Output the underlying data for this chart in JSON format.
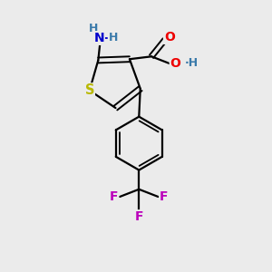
{
  "background_color": "#ebebeb",
  "atom_colors": {
    "S": "#b8b800",
    "N": "#0000cc",
    "O": "#ee0000",
    "F": "#bb00bb",
    "C": "#000000",
    "H": "#3a7aaa"
  },
  "figsize": [
    3.0,
    3.0
  ],
  "dpi": 100
}
